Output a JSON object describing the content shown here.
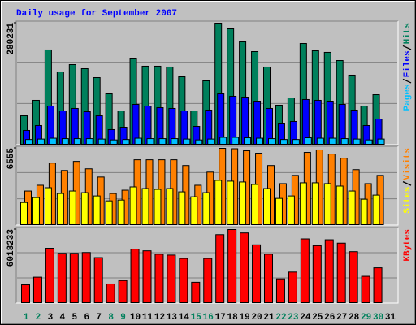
{
  "chart_data": [
    {
      "type": "bar",
      "title": "Daily usage for September 2007",
      "categories": [
        "1",
        "2",
        "3",
        "4",
        "5",
        "6",
        "7",
        "8",
        "9",
        "10",
        "11",
        "12",
        "13",
        "14",
        "15",
        "16",
        "17",
        "18",
        "19",
        "20",
        "21",
        "22",
        "23",
        "24",
        "25",
        "26",
        "27",
        "28",
        "29",
        "30",
        "31"
      ],
      "x_label_colors": [
        "#00805c",
        "#00805c",
        "#000000",
        "#000000",
        "#000000",
        "#000000",
        "#000000",
        "#00805c",
        "#00805c",
        "#000000",
        "#000000",
        "#000000",
        "#000000",
        "#000000",
        "#00805c",
        "#00805c",
        "#000000",
        "#000000",
        "#000000",
        "#000000",
        "#000000",
        "#00805c",
        "#00805c",
        "#000000",
        "#000000",
        "#000000",
        "#000000",
        "#000000",
        "#00805c",
        "#00805c",
        "#000000"
      ],
      "ylim": [
        0,
        280231
      ],
      "yticks": [
        280231
      ],
      "series": [
        {
          "name": "Hits",
          "color": "#00805c",
          "values": [
            65800,
            101600,
            218200,
            167400,
            184300,
            174900,
            154200,
            116600,
            77100,
            197500,
            180600,
            180600,
            178700,
            156100,
            77100,
            146700,
            280231,
            267100,
            237000,
            214400,
            178700,
            90300,
            107200,
            233200,
            216300,
            212600,
            193700,
            159900,
            88400,
            114700,
            null
          ]
        },
        {
          "name": "Files",
          "color": "#0000ff",
          "values": [
            32000,
            43300,
            88400,
            77100,
            82800,
            75200,
            65800,
            33900,
            39500,
            92200,
            88400,
            84600,
            82800,
            77100,
            41400,
            79000,
            116600,
            111000,
            109100,
            99700,
            82800,
            48900,
            52700,
            103500,
            101600,
            99700,
            92200,
            79000,
            43300,
            58300,
            null
          ]
        },
        {
          "name": "Pages",
          "color": "#00c0ff",
          "values": [
            11000,
            12000,
            14000,
            13000,
            13000,
            13000,
            12000,
            10000,
            11000,
            14000,
            13000,
            13000,
            13000,
            12000,
            10000,
            12000,
            16000,
            16000,
            15000,
            14000,
            13000,
            11000,
            11000,
            15000,
            14000,
            14000,
            13000,
            12000,
            10000,
            12000,
            null
          ]
        }
      ]
    },
    {
      "type": "bar",
      "ylim": [
        0,
        6555
      ],
      "yticks": [
        6555
      ],
      "series": [
        {
          "name": "Visits",
          "color": "#ff8000",
          "values": [
            2890,
            3384,
            5288,
            4653,
            5429,
            4794,
            4089,
            2679,
            2961,
            5570,
            5570,
            5570,
            5570,
            5076,
            3384,
            4512,
            6555,
            6520,
            6345,
            6134,
            5076,
            3525,
            4230,
            6204,
            6416,
            6063,
            5711,
            4724,
            3525,
            4230,
            null
          ]
        },
        {
          "name": "Sites",
          "color": "#ffff00",
          "values": [
            1904,
            2327,
            3173,
            2679,
            2891,
            2750,
            2468,
            2045,
            2115,
            3243,
            3102,
            3032,
            3102,
            2820,
            2397,
            2750,
            3807,
            3737,
            3666,
            3455,
            3102,
            2256,
            2468,
            3596,
            3596,
            3525,
            3314,
            2891,
            2186,
            2538,
            null
          ]
        }
      ]
    },
    {
      "type": "bar",
      "ylim": [
        0,
        6018233
      ],
      "yticks": [
        6018233
      ],
      "series": [
        {
          "name": "KBytes",
          "color": "#ff0000",
          "values": [
            1469580,
            2099400,
            4478720,
            4058840,
            4058840,
            4128820,
            3708940,
            1539560,
            1819480,
            4408740,
            4268780,
            3988860,
            3918880,
            3638960,
            1679520,
            3638960,
            5598400,
            6018233,
            5738360,
            4758640,
            3988860,
            1959440,
            2519280,
            5248500,
            4688660,
            5178520,
            4898600,
            4198800,
            2169380,
            2869180,
            null
          ]
        }
      ]
    }
  ]
}
